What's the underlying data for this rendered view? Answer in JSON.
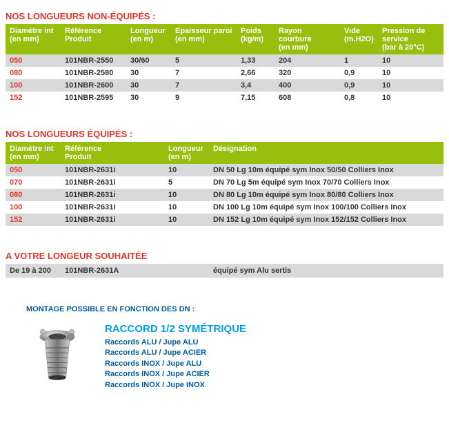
{
  "section1": {
    "title": "NOS LONGUEURS NON-ÉQUIPÉS :",
    "headers": {
      "c0a": "Diamètre int",
      "c0b": "(en mm)",
      "c1a": "Référence",
      "c1b": "Produit",
      "c2a": "Longueur",
      "c2b": "(en m)",
      "c3a": "Epaisseur paroi",
      "c3b": "(en mm)",
      "c4a": "Poids",
      "c4b": "(kg/m)",
      "c5a": "Rayon courbure",
      "c5b": "(en mm)",
      "c6a": "Vide",
      "c6b": "(m.H2O)",
      "c7a": "Pression de service",
      "c7b": "(bar à 20°C)"
    },
    "rows": [
      {
        "d": "050",
        "ref": "101NBR-2550",
        "len": "30/60",
        "th": "5",
        "w": "1,33",
        "r": "204",
        "v": "1",
        "p": "10"
      },
      {
        "d": "080",
        "ref": "101NBR-2580",
        "len": "30",
        "th": "7",
        "w": "2,66",
        "r": "320",
        "v": "0,9",
        "p": "10"
      },
      {
        "d": "100",
        "ref": "101NBR-2600",
        "len": "30",
        "th": "7",
        "w": "3,4",
        "r": "400",
        "v": "0,9",
        "p": "10"
      },
      {
        "d": "152",
        "ref": "101NBR-2595",
        "len": "30",
        "th": "9",
        "w": "7,15",
        "r": "608",
        "v": "0,8",
        "p": "10"
      }
    ]
  },
  "section2": {
    "title": "NOS LONGUEURS ÉQUIPÉS :",
    "headers": {
      "c0a": "Diamètre int",
      "c0b": "(en mm)",
      "c1a": "Référence",
      "c1b": "Produit",
      "c2a": "Longueur",
      "c2b": "(en m)",
      "c3a": "Désignation",
      "c3b": ""
    },
    "rows": [
      {
        "d": "050",
        "ref": "101NBR-2631i",
        "len": "10",
        "desc": "DN 50 Lg 10m équipé sym Inox 50/50 Colliers Inox"
      },
      {
        "d": "070",
        "ref": "101NBR-2631i",
        "len": "5",
        "desc": "DN 70 Lg 5m équipé sym Inox 70/70 Colliers Inox"
      },
      {
        "d": "080",
        "ref": "101NBR-2631i",
        "len": "10",
        "desc": "DN 80 Lg 10m équipé sym Inox 80/80 Colliers Inox"
      },
      {
        "d": "100",
        "ref": "101NBR-2631i",
        "len": "10",
        "desc": "DN 100 Lg 10m équipé sym Inox 100/100 Colliers Inox"
      },
      {
        "d": "152",
        "ref": "101NBR-2631i",
        "len": "10",
        "desc": "DN 152 Lg 10m équipé sym Inox 152/152 Colliers Inox"
      }
    ]
  },
  "section3": {
    "title": "A VOTRE LONGEUR SOUHAITÉE",
    "row": {
      "d": "De 19 à 200",
      "ref": "101NBR-2631A",
      "desc": "équipé sym Alu sertis"
    }
  },
  "montage": {
    "title": "MONTAGE POSSIBLE EN FONCTION DES DN :",
    "heading": "RACCORD 1/2 SYMÉTRIQUE",
    "lines": [
      "Raccords ALU / Jupe ALU",
      "Raccords ALU / Jupe ACIER",
      "Raccords INOX / Jupe ALU",
      "Raccords INOX / Jupe ACIER",
      "Raccords INOX / Jupe INOX"
    ]
  },
  "colors": {
    "red": "#e6332a",
    "green": "#97bf0d",
    "grey": "#d9d9d9",
    "blueLight": "#009fe3",
    "blueDark": "#005b9f"
  }
}
